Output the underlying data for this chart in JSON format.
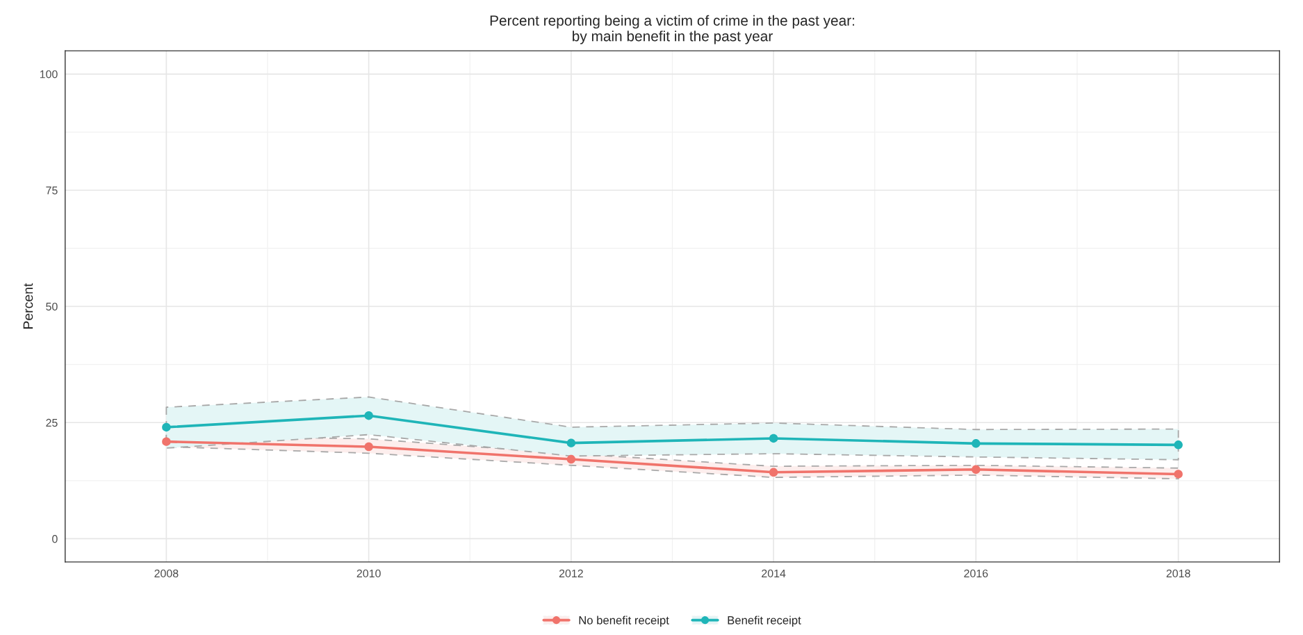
{
  "chart_data": {
    "type": "line",
    "title": "Percent reporting being a victim of crime in the past year:\nby main benefit in the past year",
    "ylabel": "Percent",
    "x": [
      2008,
      2010,
      2012,
      2014,
      2016,
      2018
    ],
    "series": [
      {
        "name": "No benefit receipt",
        "color": "#f0736b",
        "values": [
          20.9,
          19.8,
          17.1,
          14.3,
          14.9,
          13.9
        ],
        "lower": [
          19.8,
          18.4,
          15.8,
          13.2,
          13.7,
          12.9
        ],
        "upper": [
          22.2,
          21.5,
          18.3,
          15.6,
          15.8,
          15.2
        ]
      },
      {
        "name": "Benefit receipt",
        "color": "#1fb5b8",
        "values": [
          24.0,
          26.5,
          20.6,
          21.6,
          20.5,
          20.2
        ],
        "lower": [
          19.5,
          22.4,
          17.8,
          18.3,
          17.6,
          17.0
        ],
        "upper": [
          28.3,
          30.5,
          24.0,
          24.9,
          23.5,
          23.6
        ]
      }
    ],
    "xlim": [
      2007,
      2019
    ],
    "xticks": [
      2008,
      2010,
      2012,
      2014,
      2016,
      2018
    ],
    "ylim": [
      -5,
      105
    ],
    "yticks": [
      0,
      25,
      50,
      75,
      100
    ],
    "grid": true,
    "legend": "bottom",
    "marker": "circle",
    "line_style": "solid"
  }
}
